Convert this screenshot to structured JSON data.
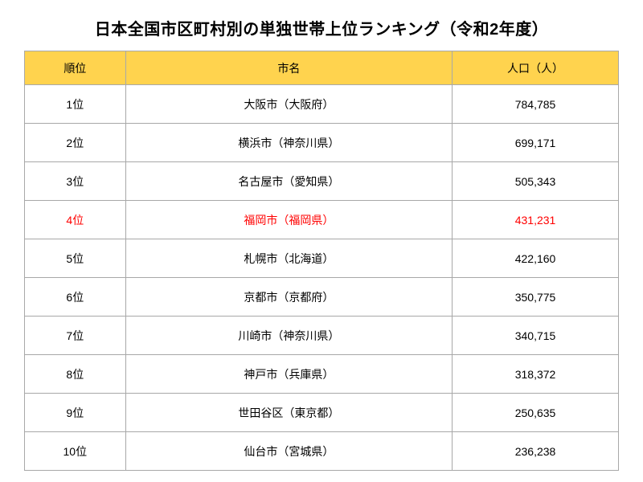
{
  "title": "日本全国市区町村別の単独世帯上位ランキング（令和2年度）",
  "table": {
    "type": "table",
    "columns": [
      "順位",
      "市名",
      "人口（人）"
    ],
    "column_widths": [
      "17%",
      "55%",
      "28%"
    ],
    "header_bg_color": "#ffd34e",
    "border_color": "#a8a8a8",
    "text_color": "#000000",
    "highlight_color": "#ff0000",
    "header_fontsize": 14,
    "cell_fontsize": 14,
    "title_fontsize": 20,
    "rows": [
      {
        "rank": "1位",
        "city": "大阪市（大阪府）",
        "pop": "784,785",
        "highlight": false
      },
      {
        "rank": "2位",
        "city": "横浜市（神奈川県）",
        "pop": "699,171",
        "highlight": false
      },
      {
        "rank": "3位",
        "city": "名古屋市（愛知県）",
        "pop": "505,343",
        "highlight": false
      },
      {
        "rank": "4位",
        "city": "福岡市（福岡県）",
        "pop": "431,231",
        "highlight": true
      },
      {
        "rank": "5位",
        "city": "札幌市（北海道）",
        "pop": "422,160",
        "highlight": false
      },
      {
        "rank": "6位",
        "city": "京都市（京都府）",
        "pop": "350,775",
        "highlight": false
      },
      {
        "rank": "7位",
        "city": "川崎市（神奈川県）",
        "pop": "340,715",
        "highlight": false
      },
      {
        "rank": "8位",
        "city": "神戸市（兵庫県）",
        "pop": "318,372",
        "highlight": false
      },
      {
        "rank": "9位",
        "city": "世田谷区（東京都）",
        "pop": "250,635",
        "highlight": false
      },
      {
        "rank": "10位",
        "city": "仙台市（宮城県）",
        "pop": "236,238",
        "highlight": false
      }
    ]
  }
}
